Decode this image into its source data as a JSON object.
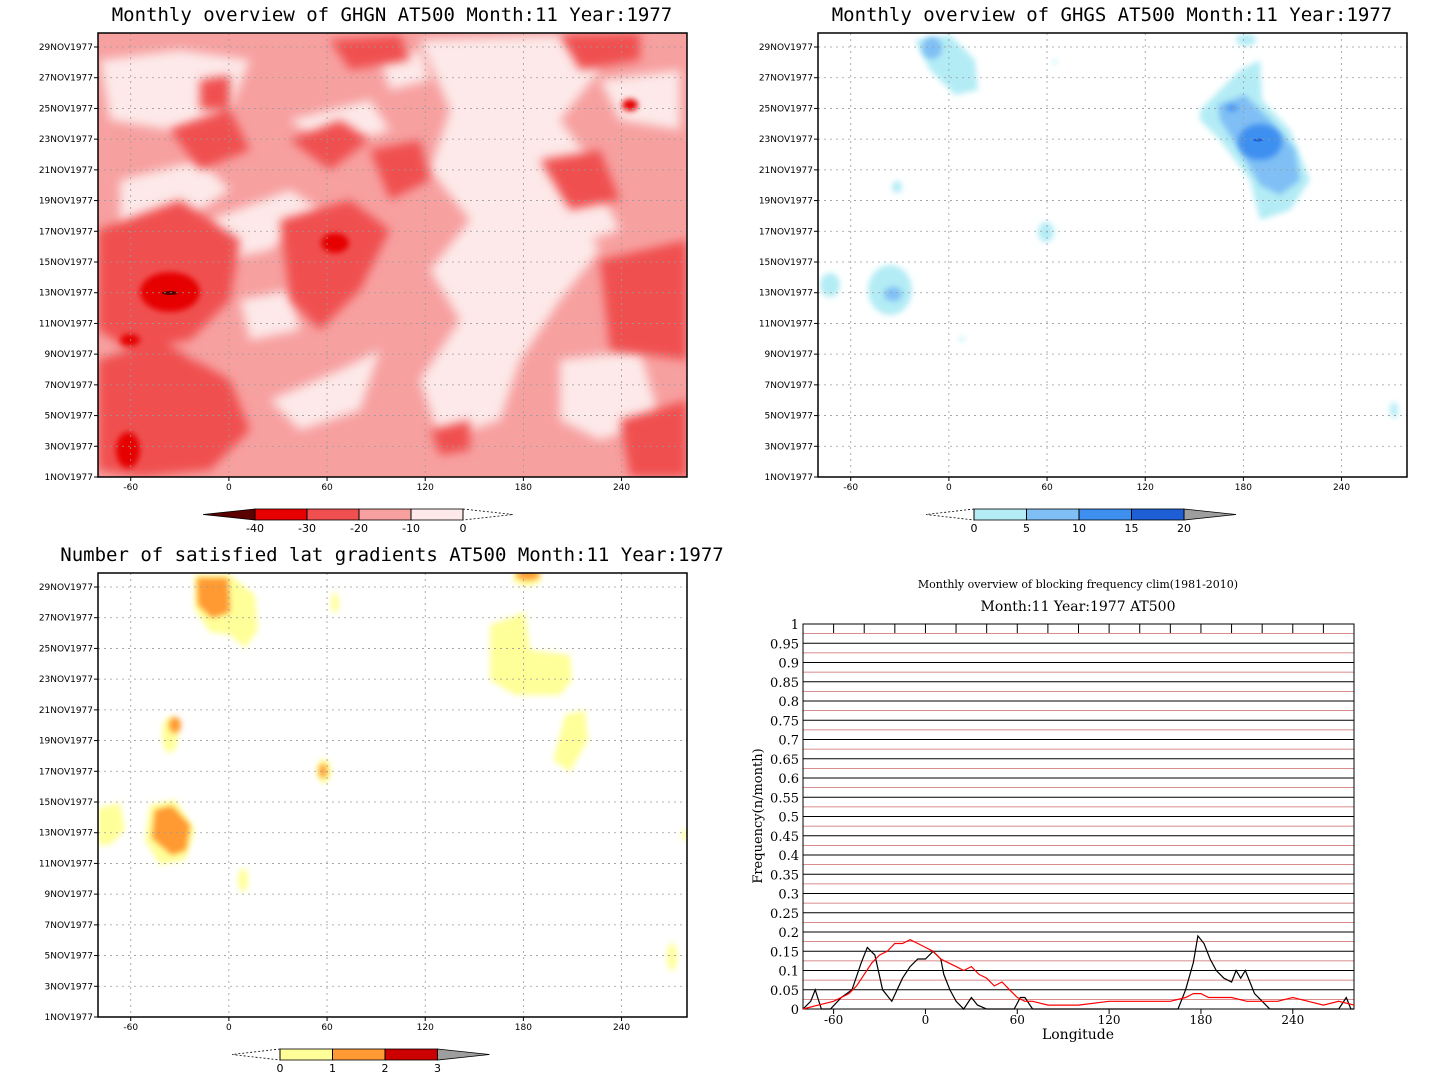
{
  "chart_data": [
    {
      "type": "heatmap",
      "title": "Monthly overview of GHGN AT500 Month:11 Year:1977",
      "x_ticks": [
        "-60",
        "0",
        "60",
        "120",
        "180",
        "240"
      ],
      "x_tick_values": [
        -60,
        0,
        60,
        120,
        180,
        240
      ],
      "xlim": [
        -80,
        280
      ],
      "y_ticks": [
        "1NOV1977",
        "3NOV1977",
        "5NOV1977",
        "7NOV1977",
        "9NOV1977",
        "11NOV1977",
        "13NOV1977",
        "15NOV1977",
        "17NOV1977",
        "19NOV1977",
        "21NOV1977",
        "23NOV1977",
        "25NOV1977",
        "27NOV1977",
        "29NOV1977"
      ],
      "colorbar": {
        "labels": [
          "-40",
          "-30",
          "-20",
          "-10",
          "0"
        ],
        "colors": [
          "#5a0000",
          "#e60000",
          "#f04f4f",
          "#f7a0a0",
          "#fde9e9"
        ]
      },
      "background_color": "#f7a0a0",
      "grid": true
    },
    {
      "type": "heatmap",
      "title": "Monthly overview of GHGS AT500 Month:11 Year:1977",
      "x_ticks": [
        "-60",
        "0",
        "60",
        "120",
        "180",
        "240"
      ],
      "x_tick_values": [
        -60,
        0,
        60,
        120,
        180,
        240
      ],
      "xlim": [
        -80,
        280
      ],
      "y_ticks": [
        "1NOV1977",
        "3NOV1977",
        "5NOV1977",
        "7NOV1977",
        "9NOV1977",
        "11NOV1977",
        "13NOV1977",
        "15NOV1977",
        "17NOV1977",
        "19NOV1977",
        "21NOV1977",
        "23NOV1977",
        "25NOV1977",
        "27NOV1977",
        "29NOV1977"
      ],
      "colorbar": {
        "labels": [
          "0",
          "5",
          "10",
          "15",
          "20"
        ],
        "colors": [
          "#b3ecf5",
          "#80bff5",
          "#3d8ff0",
          "#1f5fd6",
          "#9e9e9e"
        ]
      },
      "grid": true
    },
    {
      "type": "heatmap",
      "title": "Number of satisfied lat gradients AT500 Month:11 Year:1977",
      "x_ticks": [
        "-60",
        "0",
        "60",
        "120",
        "180",
        "240"
      ],
      "x_tick_values": [
        -60,
        0,
        60,
        120,
        180,
        240
      ],
      "xlim": [
        -80,
        280
      ],
      "y_ticks": [
        "1NOV1977",
        "3NOV1977",
        "5NOV1977",
        "7NOV1977",
        "9NOV1977",
        "11NOV1977",
        "13NOV1977",
        "15NOV1977",
        "17NOV1977",
        "19NOV1977",
        "21NOV1977",
        "23NOV1977",
        "25NOV1977",
        "27NOV1977",
        "29NOV1977"
      ],
      "colorbar": {
        "labels": [
          "0",
          "1",
          "2",
          "3"
        ],
        "colors": [
          "#ffff99",
          "#ff9933",
          "#cc0000",
          "#9e9e9e"
        ]
      },
      "grid": true
    },
    {
      "type": "line",
      "title": "Monthly overview of blocking frequency clim(1981-2010)",
      "subtitle": "Month:11 Year:1977  AT500",
      "xlabel": "Longitude",
      "ylabel": "Frequency(n/month)",
      "xlim": [
        -80,
        280
      ],
      "ylim": [
        0,
        1
      ],
      "x_ticks": [
        "-60",
        "0",
        "60",
        "120",
        "180",
        "240"
      ],
      "x_tick_values": [
        -60,
        0,
        60,
        120,
        180,
        240
      ],
      "y_ticks": [
        "0",
        "0.05",
        "0.1",
        "0.15",
        "0.2",
        "0.25",
        "0.3",
        "0.35",
        "0.4",
        "0.45",
        "0.5",
        "0.55",
        "0.6",
        "0.65",
        "0.7",
        "0.75",
        "0.8",
        "0.85",
        "0.9",
        "0.95",
        "1"
      ],
      "series": [
        {
          "color": "#000000",
          "x": [
            -80,
            -75,
            -72,
            -68,
            -62,
            -55,
            -48,
            -42,
            -38,
            -33,
            -28,
            -22,
            -15,
            -10,
            -5,
            0,
            5,
            10,
            12,
            16,
            20,
            25,
            30,
            34,
            40,
            45,
            50,
            55,
            58,
            62,
            65,
            70,
            80,
            100,
            120,
            140,
            155,
            160,
            165,
            170,
            175,
            178,
            182,
            186,
            190,
            195,
            200,
            203,
            206,
            209,
            212,
            215,
            220,
            225,
            230,
            240,
            250,
            260,
            270,
            275,
            278,
            280
          ],
          "values": [
            0,
            0.02,
            0.05,
            0,
            0,
            0.03,
            0.05,
            0.12,
            0.16,
            0.14,
            0.05,
            0.02,
            0.08,
            0.11,
            0.13,
            0.13,
            0.15,
            0.13,
            0.09,
            0.05,
            0.02,
            0,
            0.03,
            0.01,
            0,
            0,
            0,
            0,
            0,
            0.03,
            0.03,
            0,
            0,
            0,
            0,
            0,
            0,
            0,
            0,
            0.05,
            0.12,
            0.19,
            0.17,
            0.13,
            0.1,
            0.08,
            0.07,
            0.1,
            0.08,
            0.1,
            0.07,
            0.04,
            0.02,
            0,
            0,
            0,
            0,
            0,
            0,
            0.03,
            0,
            0
          ]
        },
        {
          "color": "#ff0000",
          "x": [
            -80,
            -70,
            -60,
            -50,
            -45,
            -40,
            -35,
            -30,
            -25,
            -20,
            -15,
            -10,
            -5,
            0,
            5,
            10,
            15,
            20,
            25,
            30,
            35,
            40,
            45,
            50,
            55,
            60,
            65,
            70,
            80,
            90,
            100,
            120,
            140,
            160,
            170,
            175,
            180,
            185,
            190,
            200,
            210,
            220,
            230,
            240,
            250,
            260,
            270,
            280
          ],
          "values": [
            0,
            0.01,
            0.02,
            0.04,
            0.06,
            0.09,
            0.12,
            0.14,
            0.15,
            0.17,
            0.17,
            0.18,
            0.17,
            0.16,
            0.15,
            0.13,
            0.12,
            0.11,
            0.1,
            0.11,
            0.09,
            0.08,
            0.06,
            0.07,
            0.05,
            0.03,
            0.02,
            0.02,
            0.01,
            0.01,
            0.01,
            0.02,
            0.02,
            0.02,
            0.03,
            0.04,
            0.04,
            0.03,
            0.03,
            0.03,
            0.02,
            0.02,
            0.02,
            0.03,
            0.02,
            0.01,
            0.02,
            0.01
          ]
        }
      ],
      "grid_line_colors": [
        "#000000",
        "#cc6666"
      ]
    }
  ]
}
